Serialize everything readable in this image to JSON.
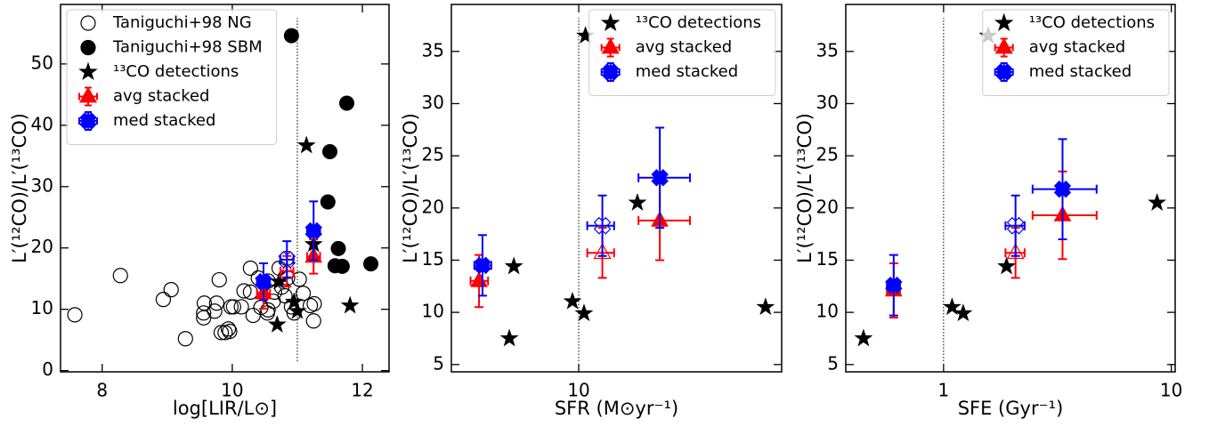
{
  "chart_data": [
    {
      "type": "scatter",
      "xlabel": "log[LIR/L⊙]",
      "ylabel": "L′(¹²CO)/L′(¹³CO)",
      "xlim": [
        7.36,
        12.41
      ],
      "ylim": [
        -0.2,
        59.7
      ],
      "xticks": [
        8,
        10,
        12
      ],
      "yticks": [
        0,
        10,
        20,
        30,
        40,
        50
      ],
      "vline": 11,
      "legend": "upper left",
      "series": [
        {
          "name": "Taniguchi+98 NG",
          "marker": "circle",
          "hollow": true,
          "color": "#000000",
          "x": [
            7.58,
            8.28,
            8.94,
            9.06,
            9.28,
            9.57,
            9.56,
            9.56,
            9.73,
            9.8,
            9.76,
            9.83,
            9.89,
            9.94,
            9.98,
            10.02,
            9.96,
            10.14,
            10.18,
            10.28,
            10.28,
            10.4,
            10.44,
            10.55,
            10.54,
            10.65,
            10.63,
            10.72,
            10.76,
            10.81,
            10.84,
            10.85,
            10.91,
            10.95,
            11.03,
            11.09,
            11.2,
            11.25,
            11.26,
            10.55,
            10.32
          ],
          "y": [
            9.1,
            15.5,
            11.6,
            13.2,
            5.2,
            11.0,
            9.4,
            8.6,
            9.7,
            14.8,
            11.0,
            6.2,
            6.2,
            6.8,
            10.4,
            10.4,
            6.4,
            10.4,
            13.0,
            12.8,
            16.7,
            15.1,
            10.3,
            14.6,
            9.4,
            12.8,
            11.3,
            16.7,
            13.6,
            12.2,
            18.3,
            15.1,
            10.4,
            9.4,
            14.9,
            12.6,
            10.6,
            8.1,
            10.9,
            9.9,
            9.0
          ]
        },
        {
          "name": "Taniguchi+98 SBM",
          "marker": "circle",
          "hollow": false,
          "color": "#000000",
          "x": [
            10.91,
            11.76,
            11.5,
            11.47,
            11.63,
            11.58,
            11.69,
            12.13
          ],
          "y": [
            54.6,
            43.6,
            35.7,
            27.5,
            19.9,
            17.1,
            17.0,
            17.4
          ]
        },
        {
          "name": "¹³CO detections",
          "marker": "star",
          "hollow": false,
          "color": "#000000",
          "x": [
            11.14,
            11.25,
            10.72,
            10.95,
            11.0,
            10.69,
            11.81
          ],
          "y": [
            36.7,
            20.6,
            14.5,
            11.2,
            9.7,
            7.5,
            10.6
          ]
        },
        {
          "name": "avg stacked",
          "marker": "triangle",
          "color": "#ff0000",
          "hollow": [
            false,
            true,
            false
          ],
          "x": [
            11.25,
            10.84,
            10.48
          ],
          "y": [
            18.6,
            16.2,
            12.6
          ],
          "xerr": [
            [
              0.1,
              0.1
            ],
            [
              0.1,
              0.1
            ],
            [
              0.1,
              0.1
            ]
          ],
          "yerr": [
            [
              2.8,
              2.8
            ],
            [
              2.5,
              2.5
            ],
            [
              2.5,
              2.5
            ]
          ]
        },
        {
          "name": "med stacked",
          "marker": "x",
          "color": "#0000ff",
          "hollow": [
            false,
            true,
            false
          ],
          "x": [
            11.25,
            10.84,
            10.48
          ],
          "y": [
            22.8,
            18.1,
            14.5
          ],
          "xerr": [
            [
              0.1,
              0.1
            ],
            [
              0.1,
              0.1
            ],
            [
              0.1,
              0.1
            ]
          ],
          "yerr": [
            [
              4.8,
              4.8
            ],
            [
              3,
              3
            ],
            [
              3,
              3
            ]
          ]
        }
      ]
    },
    {
      "type": "scatter",
      "xlabel": "SFR (M⊙yr⁻¹)",
      "ylabel": "L′(¹²CO)/L′(¹³CO)",
      "xscale": "log",
      "xlim": [
        2.76,
        77.8
      ],
      "ylim": [
        4.3,
        39.5
      ],
      "xticks": [
        10
      ],
      "yticks": [
        5,
        10,
        15,
        20,
        25,
        30,
        35
      ],
      "vline": 10,
      "legend": "upper right",
      "series": [
        {
          "name": "¹³CO detections",
          "marker": "star",
          "hollow": false,
          "color": "#000000",
          "x": [
            4.96,
            5.19,
            9.39,
            10.55,
            18.1,
            66.1,
            10.7
          ],
          "y": [
            7.5,
            14.4,
            11.05,
            9.9,
            20.5,
            10.5,
            36.5
          ]
        },
        {
          "name": "avg stacked",
          "marker": "triangle",
          "color": "#ff0000",
          "hollow": [
            false,
            true,
            false
          ],
          "x": [
            3.65,
            12.7,
            22.7
          ],
          "y": [
            13.0,
            15.7,
            18.8
          ],
          "xerr": [
            [
              0.3,
              0.35
            ],
            [
              1.8,
              1.6
            ],
            [
              4.4,
              8.1
            ]
          ],
          "yerr": [
            [
              2.5,
              2.5
            ],
            [
              2.4,
              2.4
            ],
            [
              3.8,
              3.8
            ]
          ]
        },
        {
          "name": "med stacked",
          "marker": "x",
          "color": "#0000ff",
          "hollow": [
            false,
            true,
            false
          ],
          "x": [
            3.78,
            12.7,
            22.7
          ],
          "y": [
            14.5,
            18.3,
            22.9
          ],
          "xerr": [
            [
              0.3,
              0.35
            ],
            [
              1.8,
              1.6
            ],
            [
              4.4,
              8.1
            ]
          ],
          "yerr": [
            [
              2.9,
              2.9
            ],
            [
              2.9,
              2.9
            ],
            [
              4.8,
              4.8
            ]
          ]
        }
      ]
    },
    {
      "type": "scatter",
      "xlabel": "SFE (Gyr⁻¹)",
      "ylabel": "L′(¹²CO)/L′(¹³CO)",
      "xscale": "log",
      "xlim": [
        0.372,
        10.4
      ],
      "ylim": [
        4.3,
        39.5
      ],
      "xticks": [
        1,
        10
      ],
      "yticks": [
        5,
        10,
        15,
        20,
        25,
        30,
        35
      ],
      "vline": 1,
      "legend": "upper right",
      "series": [
        {
          "name": "¹³CO detections",
          "marker": "star",
          "hollow": false,
          "color": "#000000",
          "x": [
            0.445,
            1.09,
            1.22,
            1.57,
            1.89,
            8.66
          ],
          "y": [
            7.5,
            10.5,
            9.9,
            36.5,
            14.4,
            20.5
          ]
        },
        {
          "name": "avg stacked",
          "marker": "triangle",
          "color": "#ff0000",
          "hollow": [
            false,
            true,
            false
          ],
          "x": [
            0.604,
            2.07,
            3.33
          ],
          "y": [
            12.1,
            15.7,
            19.3
          ],
          "xerr": [
            [
              0.04,
              0.04
            ],
            [
              0.2,
              0.2
            ],
            [
              0.87,
              1.37
            ]
          ],
          "yerr": [
            [
              2.6,
              2.6
            ],
            [
              2.4,
              2.4
            ],
            [
              4.2,
              4.2
            ]
          ]
        },
        {
          "name": "med stacked",
          "marker": "x",
          "color": "#0000ff",
          "hollow": [
            false,
            true,
            false
          ],
          "x": [
            0.604,
            2.07,
            3.33
          ],
          "y": [
            12.6,
            18.3,
            21.8
          ],
          "xerr": [
            [
              0.04,
              0.04
            ],
            [
              0.2,
              0.2
            ],
            [
              0.87,
              1.37
            ]
          ],
          "yerr": [
            [
              2.9,
              2.9
            ],
            [
              2.9,
              2.9
            ],
            [
              4.8,
              4.8
            ]
          ]
        }
      ]
    }
  ]
}
